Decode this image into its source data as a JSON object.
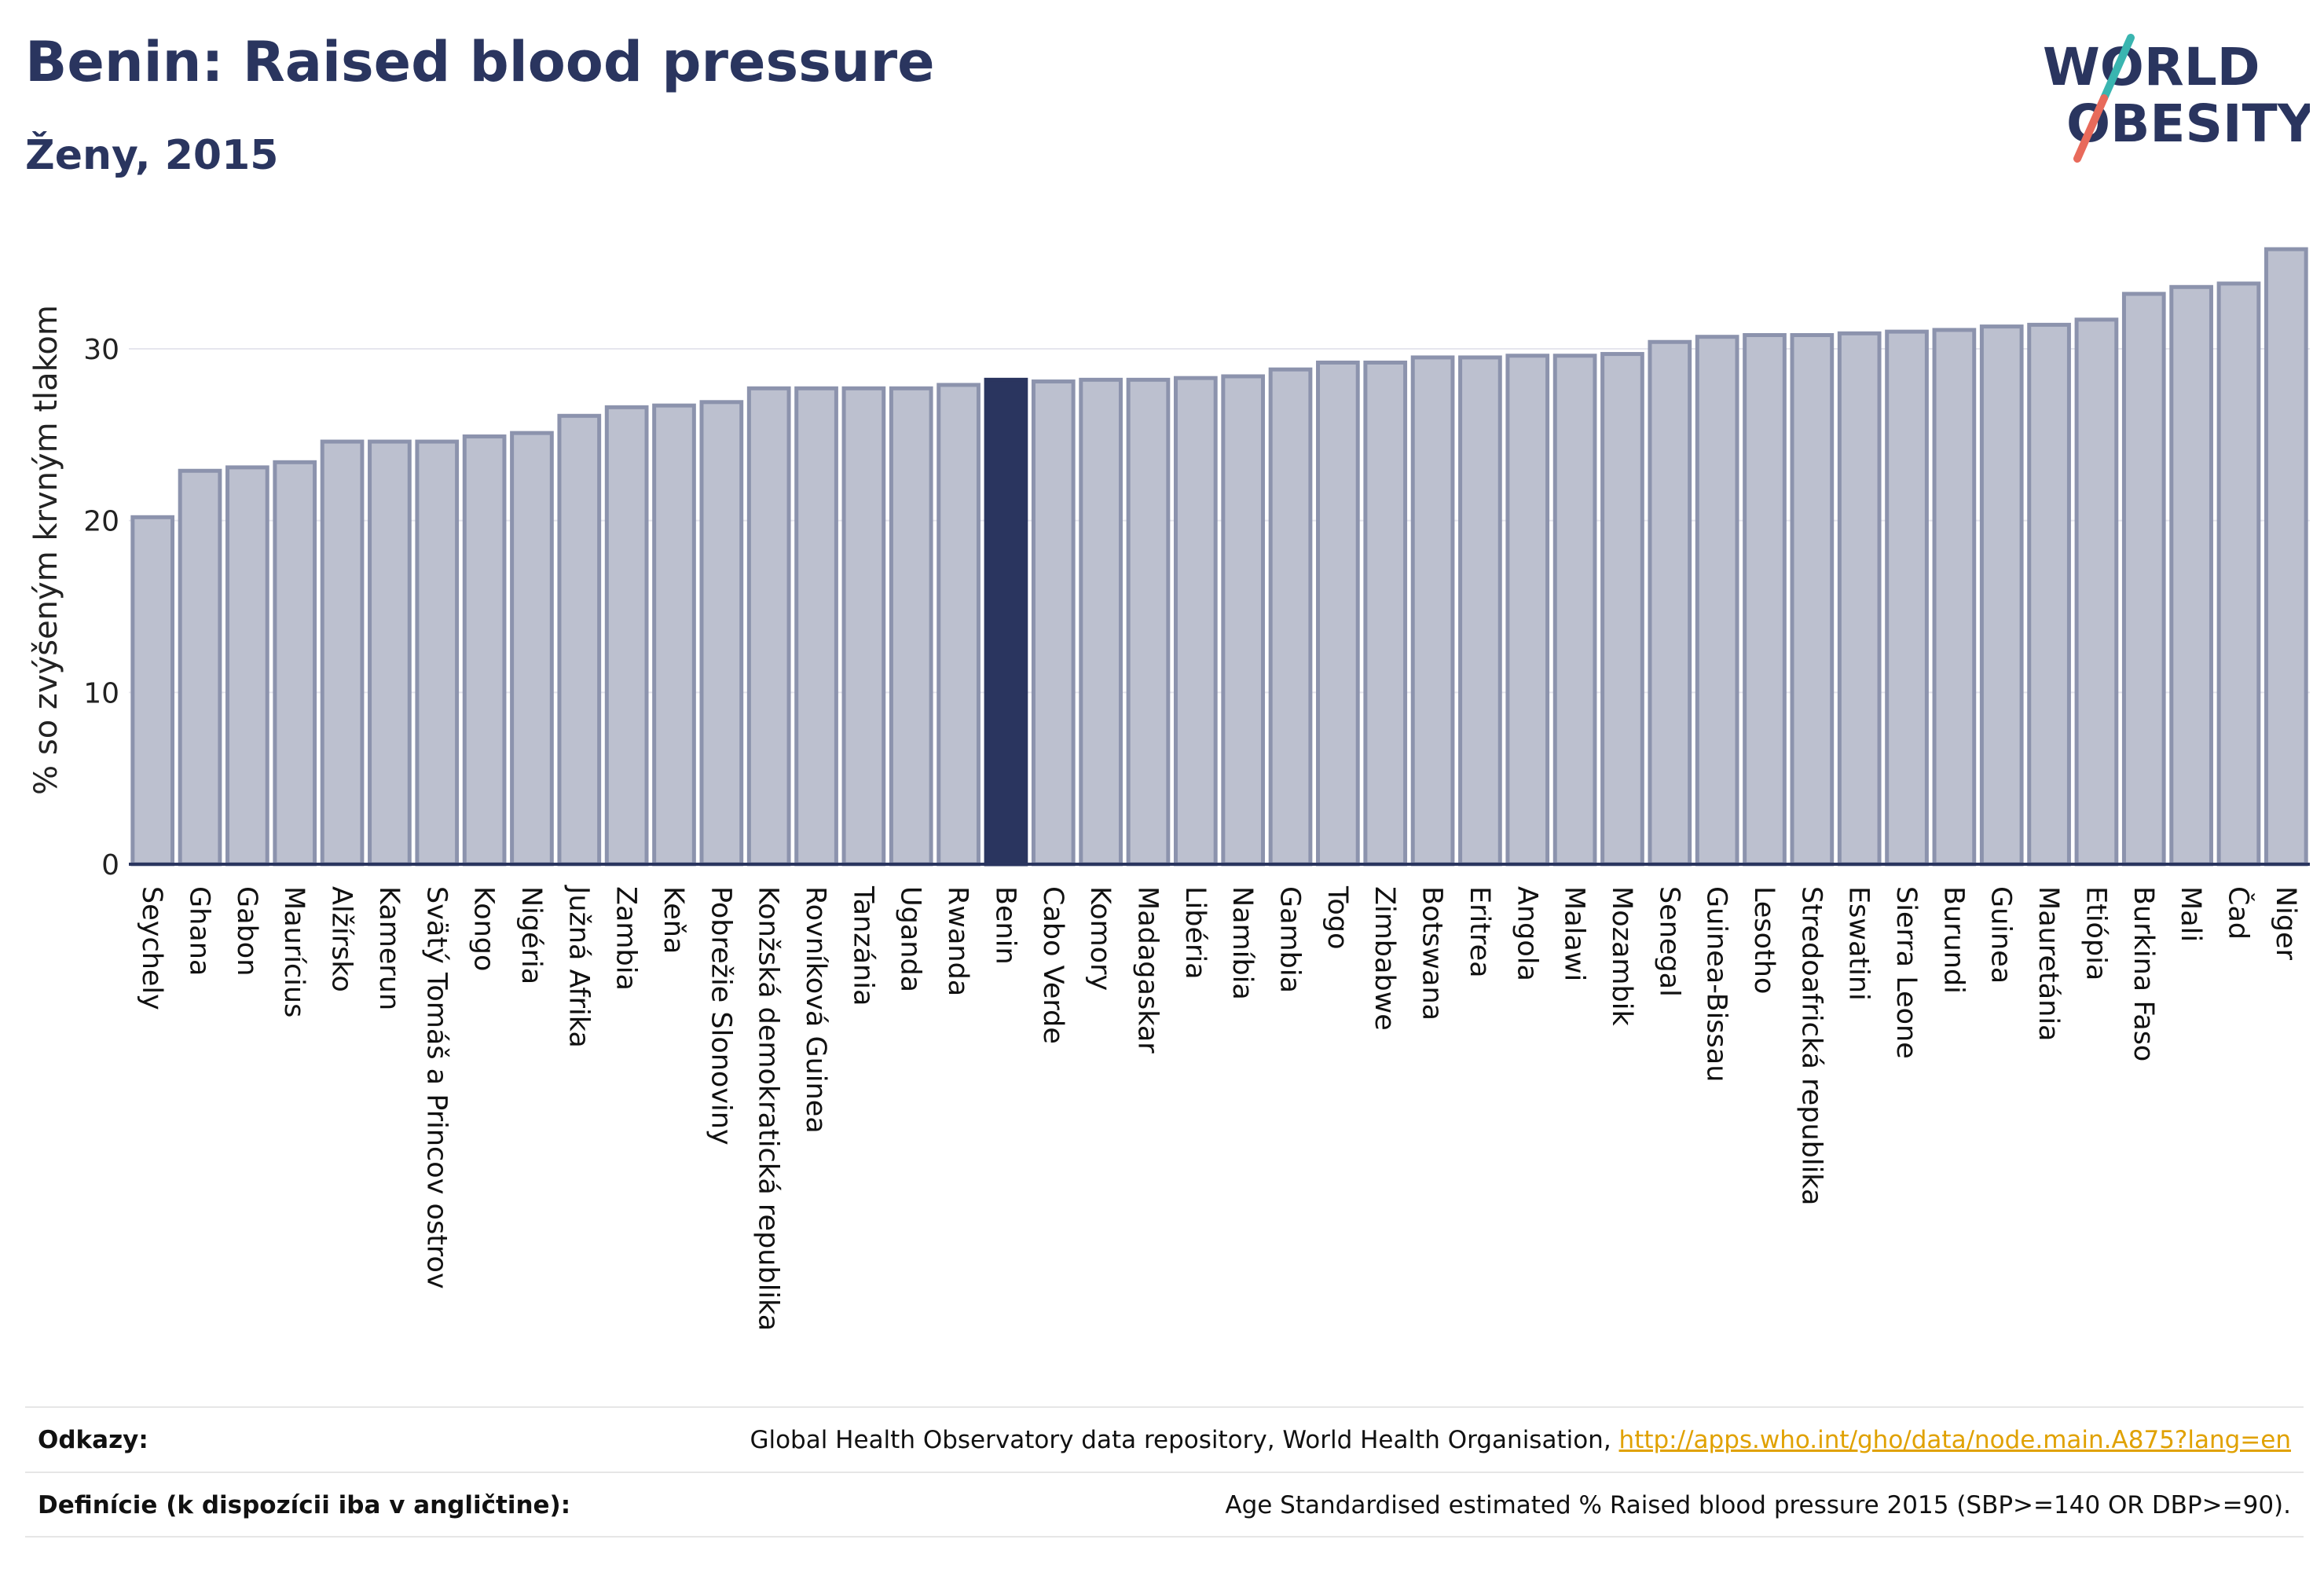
{
  "title": "Benin: Raised blood pressure",
  "subtitle": "Ženy, 2015",
  "logo": {
    "line1": "WORLD",
    "line2": "OBESITY",
    "colors": {
      "navy": "#2a355f",
      "teal": "#3ab5b0",
      "coral": "#e86a5b"
    }
  },
  "colors": {
    "bar": "#bcc0cf",
    "bar_stroke": "#8c93ad",
    "highlight": "#2a355f",
    "axis": "#2a355f",
    "grid": "#e6e6ee"
  },
  "chart_data": {
    "type": "bar",
    "ylabel": "% so zvýšeným krvným tlakom",
    "xlabel": "",
    "ylim": [
      0,
      36
    ],
    "yticks": [
      0,
      10,
      20,
      30
    ],
    "grid": true,
    "highlight": "Benin",
    "categories": [
      "Seychely",
      "Ghana",
      "Gabon",
      "Maurícius",
      "Alžírsko",
      "Kamerun",
      "Svätý Tomáš a Princov ostrov",
      "Kongo",
      "Nigéria",
      "Južná Afrika",
      "Zambia",
      "Keňa",
      "Pobrežie Slonoviny",
      "Konžská demokratická republika",
      "Rovníková Guinea",
      "Tanzánia",
      "Uganda",
      "Rwanda",
      "Benin",
      "Cabo Verde",
      "Komory",
      "Madagaskar",
      "Libéria",
      "Namíbia",
      "Gambia",
      "Togo",
      "Zimbabwe",
      "Botswana",
      "Eritrea",
      "Angola",
      "Malawi",
      "Mozambik",
      "Senegal",
      "Guinea-Bissau",
      "Lesotho",
      "Stredoafrická republika",
      "Eswatini",
      "Sierra Leone",
      "Burundi",
      "Guinea",
      "Mauretánia",
      "Etiópia",
      "Burkina Faso",
      "Mali",
      "Čad",
      "Niger"
    ],
    "values": [
      20.2,
      22.9,
      23.1,
      23.4,
      24.6,
      24.6,
      24.6,
      24.9,
      25.1,
      26.1,
      26.6,
      26.7,
      26.9,
      27.7,
      27.7,
      27.7,
      27.7,
      27.9,
      28.2,
      28.1,
      28.2,
      28.2,
      28.3,
      28.4,
      28.8,
      29.2,
      29.2,
      29.5,
      29.5,
      29.6,
      29.6,
      29.7,
      30.4,
      30.7,
      30.8,
      30.8,
      30.9,
      31.0,
      31.1,
      31.3,
      31.4,
      31.7,
      33.2,
      33.6,
      33.8,
      35.8
    ]
  },
  "footer": {
    "references_label": "Odkazy:",
    "references_text": "Global Health Observatory data repository, World Health Organisation, ",
    "references_link": "http://apps.who.int/gho/data/node.main.A875?lang=en",
    "definition_label": "Definície (k dispozícii iba v angličtine):",
    "definition_text": "Age Standardised estimated % Raised blood pressure 2015 (SBP>=140 OR DBP>=90)."
  }
}
